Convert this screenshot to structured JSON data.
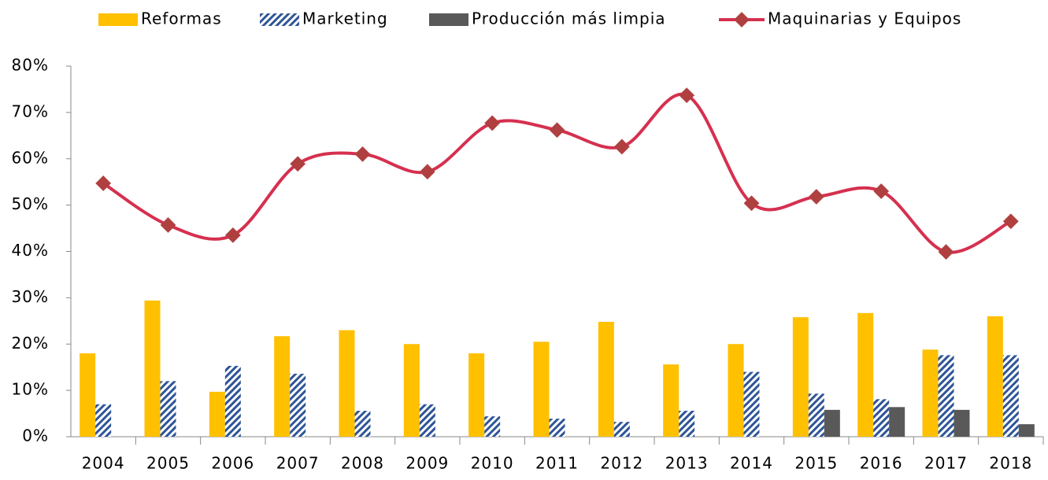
{
  "chart_data": {
    "type": "bar_line",
    "categories": [
      "2004",
      "2005",
      "2006",
      "2007",
      "2008",
      "2009",
      "2010",
      "2011",
      "2012",
      "2013",
      "2014",
      "2015",
      "2016",
      "2017",
      "2018"
    ],
    "series": [
      {
        "name": "Reformas",
        "type": "bar",
        "color": "#ffc000",
        "values": [
          18,
          29.4,
          9.7,
          21.7,
          23,
          20,
          18,
          20.5,
          24.8,
          15.6,
          20,
          25.8,
          26.7,
          18.8,
          26
        ]
      },
      {
        "name": "Marketing",
        "type": "bar",
        "color": "#2e5597",
        "pattern": "hatch",
        "values": [
          7,
          12,
          15.3,
          13.6,
          5.6,
          7,
          4.4,
          3.9,
          3.2,
          5.6,
          14,
          9.3,
          8.1,
          17.6,
          17.6
        ]
      },
      {
        "name": "Producción más limpia",
        "type": "bar",
        "color": "#595959",
        "values": [
          0,
          0,
          0,
          0,
          0,
          0,
          0,
          0,
          0,
          0,
          0,
          5.8,
          6.4,
          5.8,
          2.7
        ]
      },
      {
        "name": "Maquinarias y Equipos",
        "type": "line",
        "color": "#d6304f",
        "marker_color": "#b04040",
        "values": [
          54.7,
          45.7,
          43.5,
          58.9,
          61,
          57.2,
          67.7,
          66.2,
          62.6,
          73.7,
          50.4,
          51.8,
          53,
          39.9,
          46.5
        ]
      }
    ],
    "ylim": [
      0,
      80
    ],
    "yticks": [
      {
        "value": 0,
        "label": "0%"
      },
      {
        "value": 10,
        "label": "10%"
      },
      {
        "value": 20,
        "label": "20%"
      },
      {
        "value": 30,
        "label": "30%"
      },
      {
        "value": 40,
        "label": "40%"
      },
      {
        "value": 50,
        "label": "50%"
      },
      {
        "value": 60,
        "label": "60%"
      },
      {
        "value": 70,
        "label": "70%"
      },
      {
        "value": 80,
        "label": "80%"
      }
    ],
    "grid": false,
    "legend": "top"
  }
}
